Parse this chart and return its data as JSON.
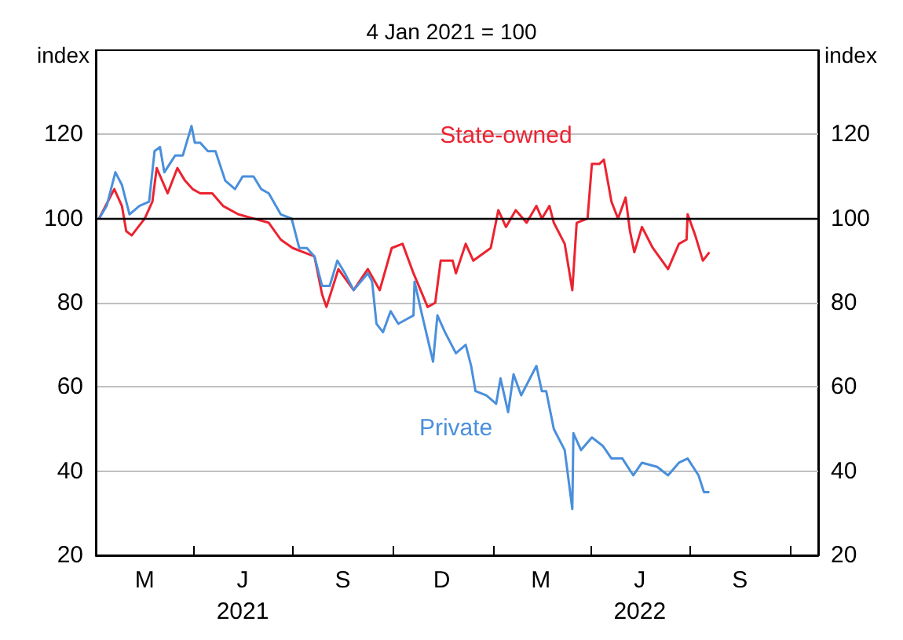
{
  "chart_data": {
    "type": "line",
    "title": "4 Jan 2021 = 100",
    "ylabel": "index",
    "y2label": "index",
    "xlim": [
      "2021-01-01",
      "2022-10-27"
    ],
    "xticks": [
      {
        "value": "2021-04-01",
        "label": null
      },
      {
        "value": "2021-07-01",
        "label": null
      },
      {
        "value": "2021-10-01",
        "label": null
      },
      {
        "value": "2022-01-01",
        "label": null
      },
      {
        "value": "2022-04-01",
        "label": null
      },
      {
        "value": "2022-07-01",
        "label": null
      },
      {
        "value": "2022-10-01",
        "label": null
      },
      {
        "value": "2021-02-15",
        "label": "M"
      },
      {
        "value": "2021-05-16",
        "label": "J\n2021"
      },
      {
        "value": "2021-08-16",
        "label": "S"
      },
      {
        "value": "2021-11-15",
        "label": "D"
      },
      {
        "value": "2022-02-14",
        "label": "M"
      },
      {
        "value": "2022-05-16",
        "label": "J\n2022"
      },
      {
        "value": "2022-08-16",
        "label": "S"
      }
    ],
    "ylim": [
      20,
      140
    ],
    "yticks": [
      20,
      40,
      60,
      80,
      100,
      120
    ],
    "y2lim": [
      20,
      140
    ],
    "y2ticks": [
      20,
      40,
      60,
      80,
      100,
      120
    ],
    "grid": "y",
    "legend": false,
    "ref_lines": [
      {
        "axis": "y",
        "value": 100,
        "color": "#000000"
      }
    ],
    "series": [
      {
        "name": "State-owned",
        "color": "#ec2330",
        "x": [
          "2021-01-04",
          "2021-01-18",
          "2021-01-25",
          "2021-01-29",
          "2021-02-03",
          "2021-02-15",
          "2021-02-22",
          "2021-02-26",
          "2021-03-08",
          "2021-03-17",
          "2021-03-24",
          "2021-03-31",
          "2021-04-07",
          "2021-04-18",
          "2021-04-28",
          "2021-05-12",
          "2021-05-26",
          "2021-06-09",
          "2021-06-20",
          "2021-07-01",
          "2021-07-11",
          "2021-07-21",
          "2021-07-28",
          "2021-08-01",
          "2021-08-12",
          "2021-08-26",
          "2021-09-08",
          "2021-09-19",
          "2021-09-30",
          "2021-10-10",
          "2021-10-20",
          "2021-11-02",
          "2021-11-09",
          "2021-11-14",
          "2021-11-25",
          "2021-11-28",
          "2021-12-07",
          "2021-12-14",
          "2021-12-30",
          "2022-01-06",
          "2022-01-13",
          "2022-01-22",
          "2022-02-01",
          "2022-02-10",
          "2022-02-15",
          "2022-02-22",
          "2022-02-26",
          "2022-03-08",
          "2022-03-15",
          "2022-03-19",
          "2022-03-29",
          "2022-04-02",
          "2022-04-09",
          "2022-04-13",
          "2022-04-20",
          "2022-04-26",
          "2022-05-03",
          "2022-05-07",
          "2022-05-11",
          "2022-05-18",
          "2022-05-28",
          "2022-06-11",
          "2022-06-21",
          "2022-06-28",
          "2022-06-29",
          "2022-07-06",
          "2022-07-13",
          "2022-07-19"
        ],
        "values": [
          100,
          107,
          103,
          97,
          96,
          100,
          104,
          112,
          106,
          112,
          109,
          107,
          106,
          106,
          103,
          101,
          100,
          99,
          95,
          93,
          92,
          91,
          82,
          79,
          88,
          83,
          88,
          83,
          93,
          94,
          87,
          79,
          80,
          90,
          90,
          87,
          94,
          90,
          93,
          102,
          98,
          102,
          99,
          103,
          100,
          103,
          99,
          94,
          83,
          99,
          100,
          113,
          113,
          114,
          104,
          100,
          105,
          97,
          92,
          98,
          93,
          88,
          94,
          95,
          101,
          96,
          90,
          92
        ]
      },
      {
        "name": "Private",
        "color": "#4a8fdc",
        "x": [
          "2021-01-04",
          "2021-01-11",
          "2021-01-19",
          "2021-01-25",
          "2021-02-01",
          "2021-02-10",
          "2021-02-19",
          "2021-02-24",
          "2021-03-01",
          "2021-03-05",
          "2021-03-15",
          "2021-03-22",
          "2021-03-30",
          "2021-04-02",
          "2021-04-07",
          "2021-04-14",
          "2021-04-21",
          "2021-04-30",
          "2021-05-09",
          "2021-05-16",
          "2021-05-26",
          "2021-06-02",
          "2021-06-09",
          "2021-06-20",
          "2021-06-30",
          "2021-07-07",
          "2021-07-14",
          "2021-07-21",
          "2021-07-28",
          "2021-08-04",
          "2021-08-11",
          "2021-08-18",
          "2021-08-26",
          "2021-09-08",
          "2021-09-12",
          "2021-09-16",
          "2021-09-22",
          "2021-09-29",
          "2021-10-06",
          "2021-10-13",
          "2021-10-20",
          "2021-10-21",
          "2021-10-28",
          "2021-11-07",
          "2021-11-11",
          "2021-11-18",
          "2021-11-28",
          "2021-12-07",
          "2021-12-12",
          "2021-12-16",
          "2021-12-26",
          "2022-01-04",
          "2022-01-08",
          "2022-01-15",
          "2022-01-20",
          "2022-01-27",
          "2022-02-10",
          "2022-02-15",
          "2022-02-19",
          "2022-02-26",
          "2022-03-08",
          "2022-03-15",
          "2022-03-16",
          "2022-03-23",
          "2022-04-02",
          "2022-04-12",
          "2022-04-20",
          "2022-04-30",
          "2022-05-10",
          "2022-05-18",
          "2022-06-01",
          "2022-06-11",
          "2022-06-21",
          "2022-06-29",
          "2022-07-09",
          "2022-07-14",
          "2022-07-19"
        ],
        "values": [
          100,
          103,
          111,
          108,
          101,
          103,
          104,
          116,
          117,
          111,
          115,
          115,
          122,
          118,
          118,
          116,
          116,
          109,
          107,
          110,
          110,
          107,
          106,
          101,
          100,
          93,
          93,
          91,
          84,
          84,
          90,
          87,
          83,
          87,
          85,
          75,
          73,
          78,
          75,
          76,
          77,
          85,
          77,
          66,
          77,
          73,
          68,
          70,
          65,
          59,
          58,
          56,
          62,
          54,
          63,
          58,
          65,
          59,
          59,
          50,
          45,
          31,
          49,
          45,
          48,
          46,
          43,
          43,
          39,
          42,
          41,
          39,
          42,
          43,
          39,
          35,
          35
        ]
      }
    ]
  }
}
